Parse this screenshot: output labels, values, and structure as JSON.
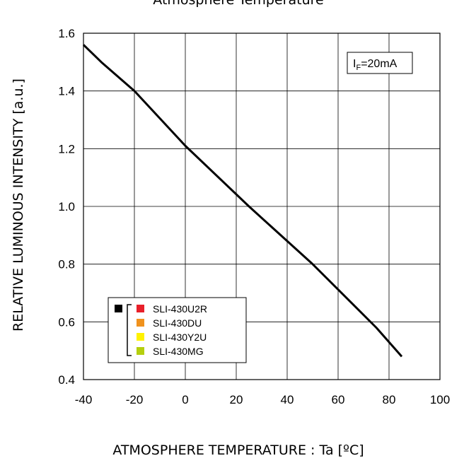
{
  "chart_data": {
    "type": "line",
    "title": "Atmosphere Temperature",
    "xlabel": "ATMOSPHERE TEMPERATURE : Ta [ºC]",
    "ylabel": "RELATIVE LUMINOUS INTENSITY [a.u.]",
    "xlim": [
      -40,
      100
    ],
    "ylim": [
      0.4,
      1.6
    ],
    "x_ticks": [
      -40,
      -20,
      0,
      20,
      40,
      60,
      80,
      100
    ],
    "x_tick_labels": [
      "-40",
      "-20",
      "0",
      "20",
      "40",
      "60",
      "80",
      "100"
    ],
    "y_ticks": [
      0.4,
      0.6,
      0.8,
      1.0,
      1.2,
      1.4,
      1.6
    ],
    "y_tick_labels": [
      "0.4",
      "0.6",
      "0.8",
      "1.0",
      "1.2",
      "1.4",
      "1.6"
    ],
    "grid": true,
    "condition": {
      "prefix": "I",
      "subscript": "F",
      "suffix": "=20mA"
    },
    "series": [
      {
        "color": "#000000",
        "x": [
          -40,
          -33,
          -20,
          0,
          25,
          50,
          75,
          85
        ],
        "y": [
          1.56,
          1.5,
          1.4,
          1.21,
          1.0,
          0.8,
          0.58,
          0.48
        ]
      }
    ],
    "legend": {
      "position": "bottom-left",
      "marker_color": "#000000",
      "entries": [
        {
          "label": "SLI-430U2R",
          "color": "#e8202a"
        },
        {
          "label": "SLI-430DU",
          "color": "#f0921e"
        },
        {
          "label": "SLI-430Y2U",
          "color": "#fff200"
        },
        {
          "label": "SLI-430MG",
          "color": "#b5cf0e"
        }
      ]
    }
  }
}
